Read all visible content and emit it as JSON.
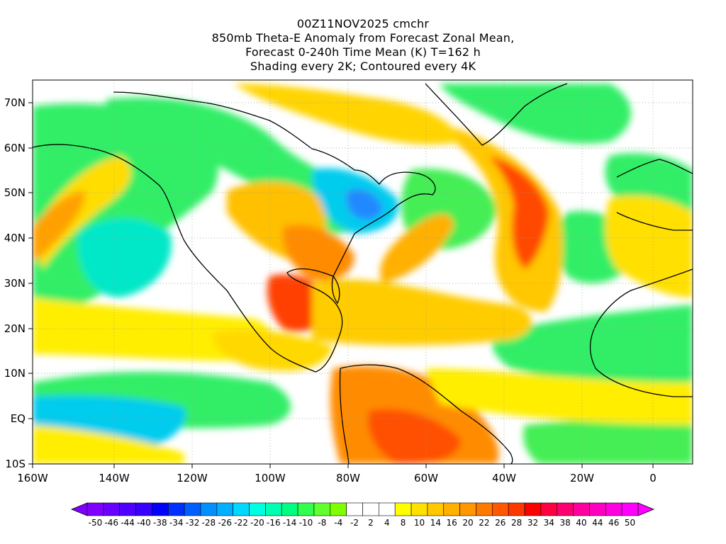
{
  "title": {
    "line1": "00Z11NOV2025 cmchr",
    "line2": "850mb Theta-E Anomaly from Forecast Zonal Mean,",
    "line3": "Forecast 0-240h Time Mean (K) T=162 h",
    "line4": "Shading every 2K; Contoured every 4K"
  },
  "map": {
    "lon_range": [
      -160,
      10
    ],
    "lat_range": [
      -10,
      75
    ],
    "lon_ticks": [
      "160W",
      "140W",
      "120W",
      "100W",
      "80W",
      "60W",
      "40W",
      "20W",
      "0"
    ],
    "lat_ticks": [
      "70N",
      "60N",
      "50N",
      "40N",
      "30N",
      "20N",
      "10N",
      "EQ",
      "10S"
    ]
  },
  "colorbar": {
    "labels": [
      "-50",
      "-46",
      "-44",
      "-40",
      "-38",
      "-34",
      "-32",
      "-28",
      "-26",
      "-22",
      "-20",
      "-16",
      "-14",
      "-10",
      "-8",
      "-4",
      "-2",
      "2",
      "4",
      "8",
      "10",
      "14",
      "16",
      "20",
      "22",
      "26",
      "28",
      "32",
      "34",
      "38",
      "40",
      "44",
      "46",
      "50"
    ],
    "colors": [
      "#8000ff",
      "#6a00ff",
      "#5000ff",
      "#3800ff",
      "#0000ff",
      "#0030ff",
      "#0060ff",
      "#0090ff",
      "#00b0ff",
      "#00d8ff",
      "#00ffe0",
      "#00ffb0",
      "#00ff80",
      "#30ff50",
      "#60ff30",
      "#80ff00",
      "#ffffff",
      "#ffffff",
      "#ffffff",
      "#ffff00",
      "#ffe000",
      "#ffc800",
      "#ffb000",
      "#ff9800",
      "#ff7800",
      "#ff5800",
      "#ff3800",
      "#ff0000",
      "#ff0040",
      "#ff0070",
      "#ff00a0",
      "#ff00c0",
      "#ff00e0",
      "#ff00ff"
    ]
  }
}
